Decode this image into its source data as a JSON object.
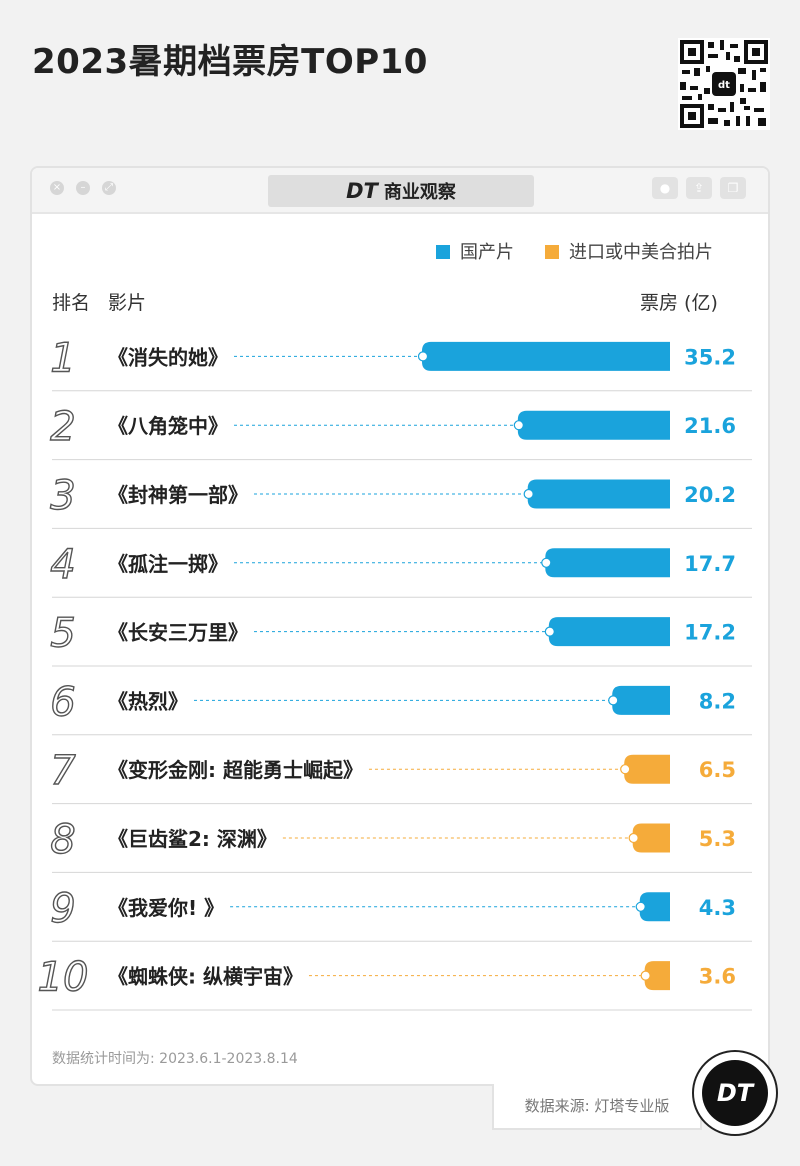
{
  "page": {
    "title": "2023暑期档票房TOP10"
  },
  "window": {
    "brand_mark": "DT",
    "brand_name": "商业观察"
  },
  "legend": {
    "domestic": "国产片",
    "imported": "进口或中美合拍片"
  },
  "headers": {
    "rank_name": "排名",
    "film": "影片",
    "box_office": "票房 (亿)"
  },
  "colors": {
    "domestic": "#1aa3dc",
    "imported": "#f5ab3a"
  },
  "chart_data": {
    "type": "bar",
    "orientation": "horizontal",
    "title": "2023暑期档票房TOP10",
    "unit": "亿",
    "series": [
      {
        "name": "国产片",
        "color": "#1aa3dc"
      },
      {
        "name": "进口或中美合拍片",
        "color": "#f5ab3a"
      }
    ],
    "items": [
      {
        "rank": "1",
        "film": "《消失的她》",
        "value": 35.2,
        "label": "35.2",
        "type": "domestic"
      },
      {
        "rank": "2",
        "film": "《八角笼中》",
        "value": 21.6,
        "label": "21.6",
        "type": "domestic"
      },
      {
        "rank": "3",
        "film": "《封神第一部》",
        "value": 20.2,
        "label": "20.2",
        "type": "domestic"
      },
      {
        "rank": "4",
        "film": "《孤注一掷》",
        "value": 17.7,
        "label": "17.7",
        "type": "domestic"
      },
      {
        "rank": "5",
        "film": "《长安三万里》",
        "value": 17.2,
        "label": "17.2",
        "type": "domestic"
      },
      {
        "rank": "6",
        "film": "《热烈》",
        "value": 8.2,
        "label": "8.2",
        "type": "domestic"
      },
      {
        "rank": "7",
        "film": "《变形金刚: 超能勇士崛起》",
        "value": 6.5,
        "label": "6.5",
        "type": "imported"
      },
      {
        "rank": "8",
        "film": "《巨齿鲨2: 深渊》",
        "value": 5.3,
        "label": "5.3",
        "type": "imported"
      },
      {
        "rank": "9",
        "film": "《我爱你! 》",
        "value": 4.3,
        "label": "4.3",
        "type": "domestic"
      },
      {
        "rank": "10",
        "film": "《蜘蛛侠: 纵横宇宙》",
        "value": 3.6,
        "label": "3.6",
        "type": "imported"
      }
    ],
    "xlim": [
      0,
      35.2
    ],
    "legend_position": "top-right",
    "grid": false
  },
  "footer": {
    "note": "数据统计时间为: 2023.6.1-2023.8.14",
    "source": "数据来源: 灯塔专业版",
    "badge": "DT"
  }
}
